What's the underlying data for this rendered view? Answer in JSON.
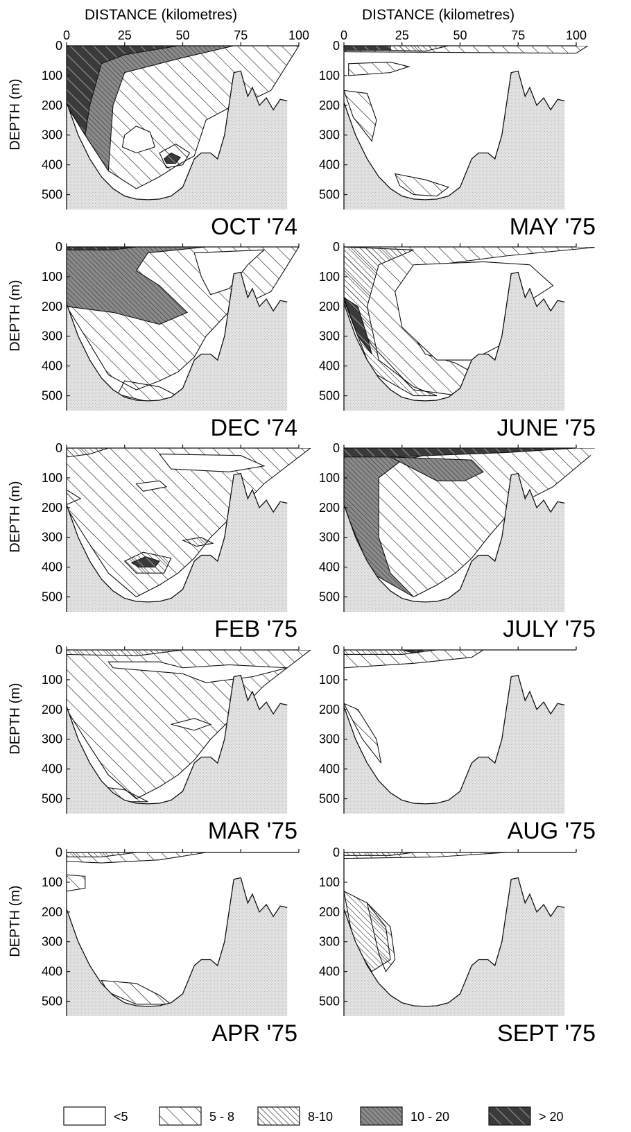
{
  "header": {
    "left_axis_title": "DISTANCE (kilometres)",
    "right_axis_title": "DISTANCE (kilometres)"
  },
  "ylabel": "DEPTH (m)",
  "x_ticks": [
    "0",
    "25",
    "50",
    "75",
    "100"
  ],
  "y_ticks": [
    "0",
    "100",
    "200",
    "300",
    "400",
    "500"
  ],
  "panels": [
    {
      "label": "OCT '74"
    },
    {
      "label": "MAY '75"
    },
    {
      "label": "DEC '74"
    },
    {
      "label": "JUNE '75"
    },
    {
      "label": "FEB '75"
    },
    {
      "label": "JULY '75"
    },
    {
      "label": "MAR '75"
    },
    {
      "label": "AUG '75"
    },
    {
      "label": "APR '75"
    },
    {
      "label": "SEPT '75"
    }
  ],
  "legend": [
    {
      "label": "<5",
      "pattern": "none"
    },
    {
      "label": "5 - 8",
      "pattern": "wide-diagonal"
    },
    {
      "label": "8-10",
      "pattern": "dense-diagonal"
    },
    {
      "label": "10 - 20",
      "pattern": "dense-diagonal-grey"
    },
    {
      "label": "> 20",
      "pattern": "dark-diagonal"
    }
  ],
  "colors": {
    "seabed": "#dcdcdc",
    "class_10_20": "#8a8a8a",
    "class_gt_20": "#3a3a3a",
    "line": "#111111"
  },
  "chart_data": {
    "type": "heatmap",
    "xlabel": "DISTANCE (kilometres)",
    "ylabel": "DEPTH (m)",
    "xlim": [
      0,
      100
    ],
    "ylim": [
      0,
      550
    ],
    "y_inverted": true,
    "grid": false,
    "legend_position": "bottom",
    "classes": [
      "<5",
      "5 - 8",
      "8-10",
      "10 - 20",
      "> 20"
    ],
    "bathymetry": {
      "distance_km": [
        0,
        5,
        10,
        15,
        20,
        25,
        30,
        35,
        40,
        45,
        50,
        55,
        58,
        62,
        65,
        68,
        72,
        75,
        78,
        80,
        83,
        86,
        89,
        92,
        95
      ],
      "depth_m": [
        190,
        300,
        380,
        440,
        480,
        505,
        515,
        517,
        515,
        505,
        475,
        380,
        360,
        360,
        380,
        300,
        90,
        85,
        170,
        140,
        200,
        175,
        215,
        180,
        185
      ]
    },
    "panels": [
      "OCT '74",
      "MAY '75",
      "DEC '74",
      "JUNE '75",
      "FEB '75",
      "JULY '75",
      "MAR '75",
      "AUG '75",
      "APR '75",
      "SEPT '75"
    ]
  }
}
